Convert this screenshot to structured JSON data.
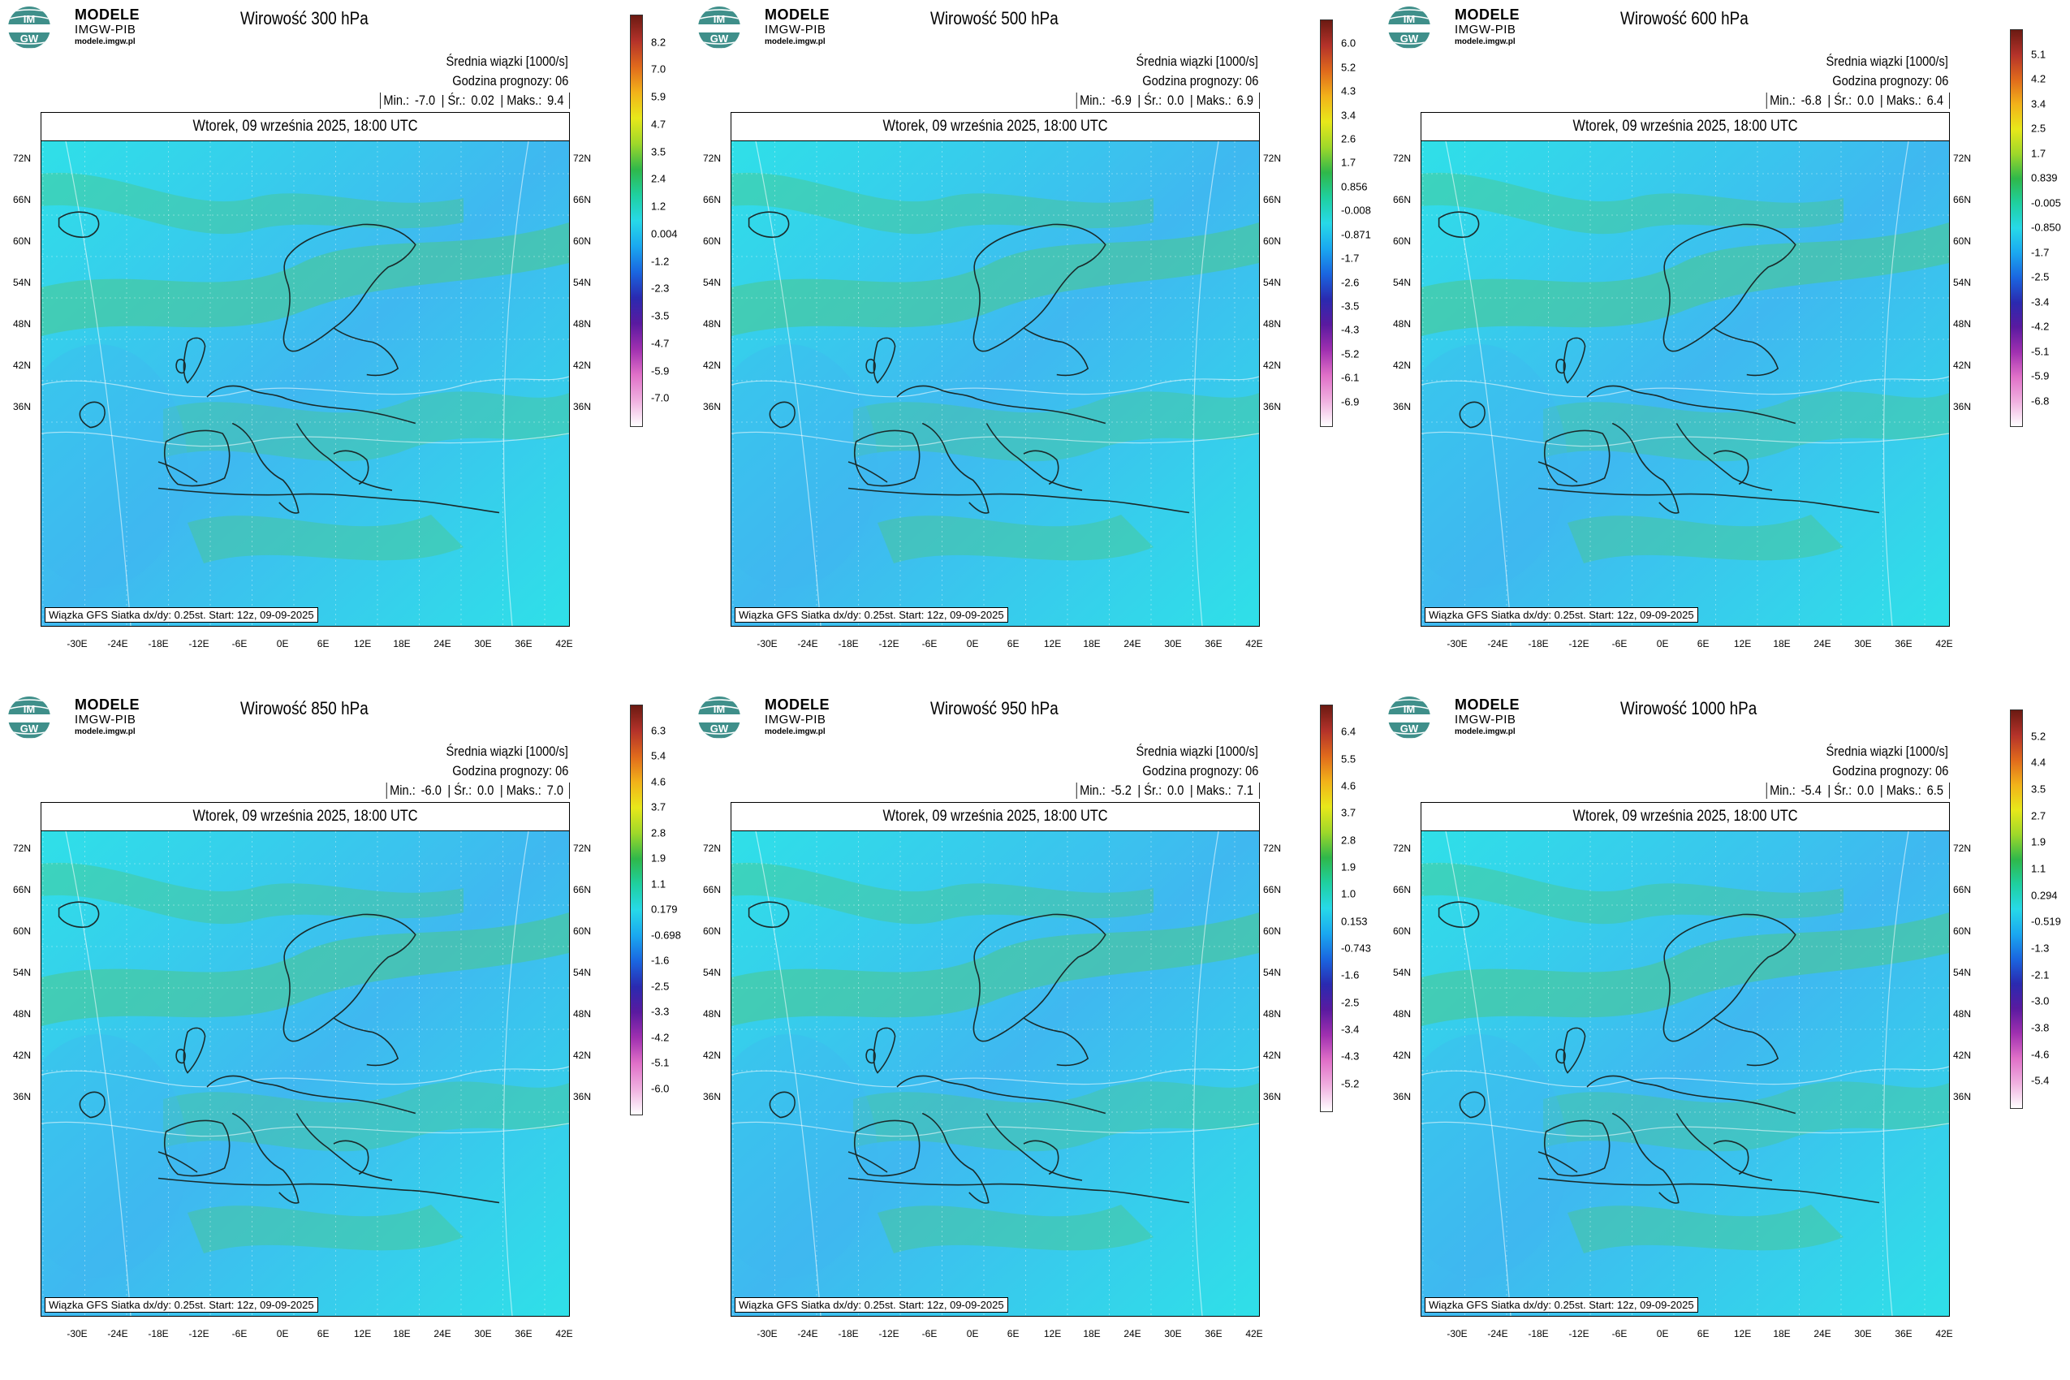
{
  "logo": {
    "modele": "MODELE",
    "imgw": "IMGW-PIB",
    "url": "modele.imgw.pl",
    "circle_text_top": "IM",
    "circle_text_bottom": "GW"
  },
  "common": {
    "series_label": "Średnia wiązki [1000/s]",
    "forecast_hour": "Godzina prognozy: 06",
    "date": "Wtorek, 09 września 2025, 18:00 UTC",
    "footer": "Wiązka GFS Siatka dx/dy: 0.25st. Start: 12z, 09-09-2025",
    "min_label": "Min.:",
    "mean_label": "Śr.:",
    "max_label": "Maks.:",
    "lat_labels": [
      "72N",
      "66N",
      "60N",
      "54N",
      "48N",
      "42N",
      "36N"
    ],
    "lon_labels": [
      "-30E",
      "-24E",
      "-18E",
      "-12E",
      "-6E",
      "0E",
      "6E",
      "12E",
      "18E",
      "24E",
      "30E",
      "36E",
      "42E"
    ]
  },
  "panels": [
    {
      "title": "Wirowość 300 hPa",
      "min": "-7.0",
      "mean": "0.02",
      "max": "9.4",
      "colorbar": [
        "8.2",
        "7.0",
        "5.9",
        "4.7",
        "3.5",
        "2.4",
        "1.2",
        "0.004",
        "-1.2",
        "-2.3",
        "-3.5",
        "-4.7",
        "-5.9",
        "-7.0"
      ]
    },
    {
      "title": "Wirowość 500 hPa",
      "min": "-6.9",
      "mean": "0.0",
      "max": "6.9",
      "colorbar": [
        "6.0",
        "5.2",
        "4.3",
        "3.4",
        "2.6",
        "1.7",
        "0.856",
        "-0.008",
        "-0.871",
        "-1.7",
        "-2.6",
        "-3.5",
        "-4.3",
        "-5.2",
        "-6.1",
        "-6.9"
      ]
    },
    {
      "title": "Wirowość 600 hPa",
      "min": "-6.8",
      "mean": "0.0",
      "max": "6.4",
      "colorbar": [
        "5.1",
        "4.2",
        "3.4",
        "2.5",
        "1.7",
        "0.839",
        "-0.005",
        "-0.850",
        "-1.7",
        "-2.5",
        "-3.4",
        "-4.2",
        "-5.1",
        "-5.9",
        "-6.8"
      ]
    },
    {
      "title": "Wirowość 850 hPa",
      "min": "-6.0",
      "mean": "0.0",
      "max": "7.0",
      "colorbar": [
        "6.3",
        "5.4",
        "4.6",
        "3.7",
        "2.8",
        "1.9",
        "1.1",
        "0.179",
        "-0.698",
        "-1.6",
        "-2.5",
        "-3.3",
        "-4.2",
        "-5.1",
        "-6.0"
      ]
    },
    {
      "title": "Wirowość 950 hPa",
      "min": "-5.2",
      "mean": "0.0",
      "max": "7.1",
      "colorbar": [
        "6.4",
        "5.5",
        "4.6",
        "3.7",
        "2.8",
        "1.9",
        "1.0",
        "0.153",
        "-0.743",
        "-1.6",
        "-2.5",
        "-3.4",
        "-4.3",
        "-5.2"
      ]
    },
    {
      "title": "Wirowość 1000 hPa",
      "min": "-5.4",
      "mean": "0.0",
      "max": "6.5",
      "colorbar": [
        "5.2",
        "4.4",
        "3.5",
        "2.7",
        "1.9",
        "1.1",
        "0.294",
        "-0.519",
        "-1.3",
        "-2.1",
        "-3.0",
        "-3.8",
        "-4.6",
        "-5.4"
      ]
    }
  ],
  "colors": {
    "field_base": "#2fe0e8",
    "field_low": "#3fb8f0",
    "field_high": "#4cc88a",
    "coast": "#1a2a2a",
    "colorbar_scale": [
      "#6b1a12",
      "#b4322a",
      "#e06a1c",
      "#f2b21a",
      "#e8e81a",
      "#9fd82a",
      "#2fb84a",
      "#1fd0a0",
      "#27d9e8",
      "#1aa8f0",
      "#1a66e0",
      "#2a2ab0",
      "#5a1aa0",
      "#a030b0",
      "#e070c8",
      "#f0b0e0",
      "#ffffff"
    ]
  }
}
